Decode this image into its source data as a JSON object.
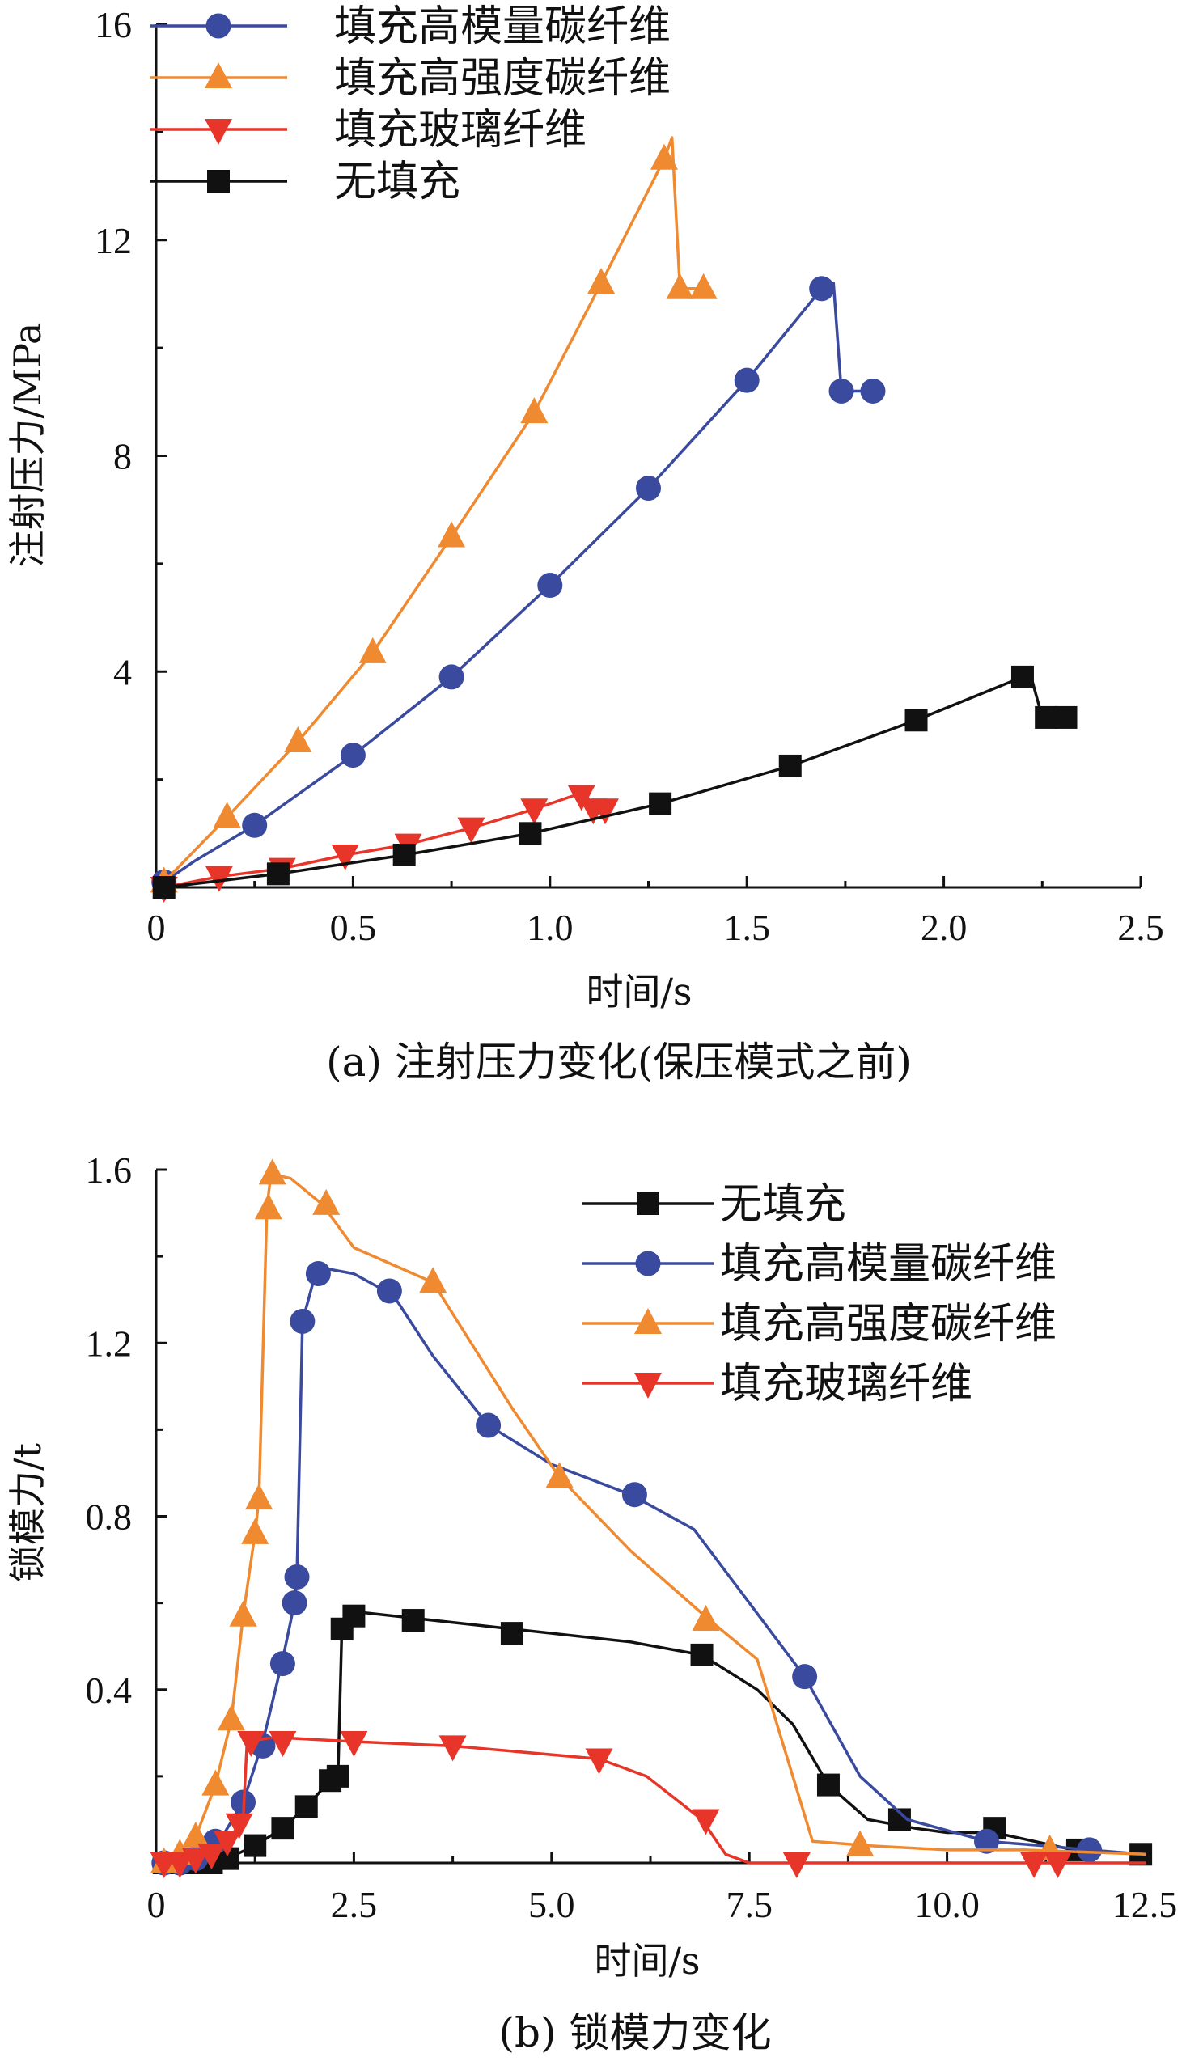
{
  "colors": {
    "blue": "#3a4a9e",
    "orange": "#f08a30",
    "red": "#e8352a",
    "black": "#111111"
  },
  "chart_data": [
    {
      "id": "a",
      "type": "line",
      "caption": "(a) 注射压力变化(保压模式之前)",
      "xlabel": "时间/s",
      "ylabel": "注射压力/MPa",
      "xlim": [
        0,
        2.5
      ],
      "ylim": [
        0,
        16
      ],
      "xticks": [
        0,
        0.5,
        1.0,
        1.5,
        2.0,
        2.5
      ],
      "xtick_labels": [
        "0",
        "0.5",
        "1.0",
        "1.5",
        "2.0",
        "2.5"
      ],
      "yticks": [
        4,
        8,
        12,
        16
      ],
      "ytick_labels": [
        "4",
        "8",
        "12",
        "16"
      ],
      "legend_position": "top-left",
      "series": [
        {
          "name": "填充高模量碳纤维",
          "color": "blue",
          "marker": "circle",
          "line": [
            [
              0.02,
              0.1
            ],
            [
              0.1,
              0.5
            ],
            [
              0.25,
              1.15
            ],
            [
              0.5,
              2.45
            ],
            [
              0.75,
              3.9
            ],
            [
              1.0,
              5.6
            ],
            [
              1.25,
              7.4
            ],
            [
              1.5,
              9.4
            ],
            [
              1.69,
              11.1
            ],
            [
              1.72,
              11.2
            ],
            [
              1.74,
              9.2
            ],
            [
              1.82,
              9.2
            ]
          ],
          "markers": [
            [
              0.02,
              0.1
            ],
            [
              0.25,
              1.15
            ],
            [
              0.5,
              2.45
            ],
            [
              0.75,
              3.9
            ],
            [
              1.0,
              5.6
            ],
            [
              1.25,
              7.4
            ],
            [
              1.5,
              9.4
            ],
            [
              1.69,
              11.1
            ],
            [
              1.74,
              9.2
            ],
            [
              1.82,
              9.2
            ]
          ]
        },
        {
          "name": "填充高强度碳纤维",
          "color": "orange",
          "marker": "triangle-up",
          "line": [
            [
              0.02,
              0.1
            ],
            [
              0.18,
              1.3
            ],
            [
              0.36,
              2.7
            ],
            [
              0.55,
              4.35
            ],
            [
              0.75,
              6.5
            ],
            [
              0.96,
              8.8
            ],
            [
              1.13,
              11.2
            ],
            [
              1.29,
              13.5
            ],
            [
              1.31,
              13.9
            ],
            [
              1.33,
              11.1
            ],
            [
              1.39,
              11.1
            ]
          ],
          "markers": [
            [
              0.02,
              0.1
            ],
            [
              0.18,
              1.3
            ],
            [
              0.36,
              2.7
            ],
            [
              0.55,
              4.35
            ],
            [
              0.75,
              6.5
            ],
            [
              0.96,
              8.8
            ],
            [
              1.13,
              11.2
            ],
            [
              1.29,
              13.5
            ],
            [
              1.33,
              11.1
            ],
            [
              1.39,
              11.1
            ]
          ]
        },
        {
          "name": "填充玻璃纤维",
          "color": "red",
          "marker": "triangle-down",
          "line": [
            [
              0.02,
              0.0
            ],
            [
              0.16,
              0.2
            ],
            [
              0.32,
              0.35
            ],
            [
              0.48,
              0.6
            ],
            [
              0.64,
              0.8
            ],
            [
              0.8,
              1.1
            ],
            [
              0.96,
              1.45
            ],
            [
              1.06,
              1.7
            ],
            [
              1.09,
              1.75
            ],
            [
              1.11,
              1.45
            ],
            [
              1.14,
              1.45
            ]
          ],
          "markers": [
            [
              0.02,
              0.0
            ],
            [
              0.16,
              0.2
            ],
            [
              0.32,
              0.35
            ],
            [
              0.48,
              0.6
            ],
            [
              0.64,
              0.8
            ],
            [
              0.8,
              1.1
            ],
            [
              0.96,
              1.45
            ],
            [
              1.08,
              1.7
            ],
            [
              1.11,
              1.45
            ],
            [
              1.14,
              1.45
            ]
          ]
        },
        {
          "name": "无填充",
          "color": "black",
          "marker": "square",
          "line": [
            [
              0.02,
              0.0
            ],
            [
              0.31,
              0.25
            ],
            [
              0.63,
              0.6
            ],
            [
              0.95,
              1.0
            ],
            [
              1.28,
              1.55
            ],
            [
              1.61,
              2.25
            ],
            [
              1.93,
              3.1
            ],
            [
              2.2,
              3.9
            ],
            [
              2.22,
              3.95
            ],
            [
              2.25,
              3.15
            ],
            [
              2.31,
              3.15
            ]
          ],
          "markers": [
            [
              0.02,
              0.0
            ],
            [
              0.31,
              0.25
            ],
            [
              0.63,
              0.6
            ],
            [
              0.95,
              1.0
            ],
            [
              1.28,
              1.55
            ],
            [
              1.61,
              2.25
            ],
            [
              1.93,
              3.1
            ],
            [
              2.2,
              3.9
            ],
            [
              2.26,
              3.15
            ],
            [
              2.31,
              3.15
            ]
          ]
        }
      ]
    },
    {
      "id": "b",
      "type": "line",
      "caption": "(b) 锁模力变化",
      "xlabel": "时间/s",
      "ylabel": "锁模力/t",
      "xlim": [
        0,
        12.5
      ],
      "ylim": [
        0,
        1.6
      ],
      "xticks": [
        0,
        2.5,
        5.0,
        7.5,
        10.0,
        12.5
      ],
      "xtick_labels": [
        "0",
        "2.5",
        "5.0",
        "7.5",
        "10.0",
        "12.5"
      ],
      "yticks": [
        0.4,
        0.8,
        1.2,
        1.6
      ],
      "ytick_labels": [
        "0.4",
        "0.8",
        "1.2",
        "1.6"
      ],
      "legend_position": "top-right",
      "series": [
        {
          "name": "无填充",
          "color": "black",
          "marker": "square",
          "line": [
            [
              0.1,
              0
            ],
            [
              0.5,
              0
            ],
            [
              0.9,
              0.01
            ],
            [
              1.25,
              0.04
            ],
            [
              1.6,
              0.08
            ],
            [
              1.9,
              0.13
            ],
            [
              2.2,
              0.19
            ],
            [
              2.3,
              0.2
            ],
            [
              2.35,
              0.55
            ],
            [
              2.5,
              0.58
            ],
            [
              4.0,
              0.55
            ],
            [
              6.0,
              0.51
            ],
            [
              6.9,
              0.48
            ],
            [
              7.6,
              0.4
            ],
            [
              8.05,
              0.32
            ],
            [
              8.5,
              0.18
            ],
            [
              9.0,
              0.1
            ],
            [
              9.6,
              0.08
            ],
            [
              10.0,
              0.07
            ],
            [
              10.6,
              0.07
            ],
            [
              11.1,
              0.05
            ],
            [
              11.6,
              0.03
            ],
            [
              12.5,
              0.02
            ]
          ],
          "markers": [
            [
              0.1,
              0
            ],
            [
              0.3,
              0
            ],
            [
              0.5,
              0
            ],
            [
              0.7,
              0
            ],
            [
              0.9,
              0.01
            ],
            [
              1.25,
              0.04
            ],
            [
              1.6,
              0.08
            ],
            [
              1.9,
              0.13
            ],
            [
              2.2,
              0.19
            ],
            [
              2.3,
              0.2
            ],
            [
              2.35,
              0.54
            ],
            [
              2.5,
              0.57
            ],
            [
              3.25,
              0.56
            ],
            [
              4.5,
              0.53
            ],
            [
              6.9,
              0.48
            ],
            [
              8.5,
              0.18
            ],
            [
              9.4,
              0.1
            ],
            [
              10.6,
              0.08
            ],
            [
              11.65,
              0.03
            ],
            [
              12.45,
              0.02
            ]
          ]
        },
        {
          "name": "填充高模量碳纤维",
          "color": "blue",
          "marker": "circle",
          "line": [
            [
              0.1,
              0
            ],
            [
              0.6,
              0.02
            ],
            [
              0.8,
              0.05
            ],
            [
              1.1,
              0.14
            ],
            [
              1.35,
              0.28
            ],
            [
              1.6,
              0.47
            ],
            [
              1.75,
              0.6
            ],
            [
              1.78,
              0.66
            ],
            [
              1.85,
              1.25
            ],
            [
              2.0,
              1.35
            ],
            [
              2.2,
              1.37
            ],
            [
              2.5,
              1.36
            ],
            [
              3.0,
              1.31
            ],
            [
              3.5,
              1.17
            ],
            [
              4.2,
              1.01
            ],
            [
              5.0,
              0.92
            ],
            [
              6.0,
              0.85
            ],
            [
              6.8,
              0.77
            ],
            [
              7.5,
              0.6
            ],
            [
              8.2,
              0.43
            ],
            [
              8.9,
              0.2
            ],
            [
              9.5,
              0.1
            ],
            [
              10.5,
              0.05
            ],
            [
              11.2,
              0.04
            ],
            [
              11.8,
              0.03
            ],
            [
              12.5,
              0.02
            ]
          ],
          "markers": [
            [
              0.1,
              0
            ],
            [
              0.3,
              0
            ],
            [
              0.5,
              0.01
            ],
            [
              0.75,
              0.05
            ],
            [
              1.1,
              0.14
            ],
            [
              1.35,
              0.27
            ],
            [
              1.6,
              0.46
            ],
            [
              1.75,
              0.6
            ],
            [
              1.78,
              0.66
            ],
            [
              1.85,
              1.25
            ],
            [
              2.05,
              1.36
            ],
            [
              2.95,
              1.32
            ],
            [
              4.2,
              1.01
            ],
            [
              6.05,
              0.85
            ],
            [
              8.2,
              0.43
            ],
            [
              10.5,
              0.05
            ],
            [
              11.8,
              0.03
            ]
          ]
        },
        {
          "name": "填充高强度碳纤维",
          "color": "orange",
          "marker": "triangle-up",
          "line": [
            [
              0.1,
              0
            ],
            [
              0.5,
              0.06
            ],
            [
              0.75,
              0.18
            ],
            [
              0.95,
              0.33
            ],
            [
              1.1,
              0.57
            ],
            [
              1.25,
              0.76
            ],
            [
              1.3,
              0.84
            ],
            [
              1.4,
              1.51
            ],
            [
              1.45,
              1.59
            ],
            [
              1.7,
              1.58
            ],
            [
              2.1,
              1.52
            ],
            [
              2.5,
              1.42
            ],
            [
              3.5,
              1.34
            ],
            [
              4.5,
              1.05
            ],
            [
              5.1,
              0.89
            ],
            [
              6.0,
              0.72
            ],
            [
              7.0,
              0.56
            ],
            [
              7.6,
              0.47
            ],
            [
              8.3,
              0.05
            ],
            [
              9.0,
              0.04
            ],
            [
              10.0,
              0.03
            ],
            [
              11.0,
              0.03
            ],
            [
              12.5,
              0.02
            ]
          ],
          "markers": [
            [
              0.1,
              0
            ],
            [
              0.3,
              0.02
            ],
            [
              0.5,
              0.06
            ],
            [
              0.75,
              0.18
            ],
            [
              0.95,
              0.33
            ],
            [
              1.1,
              0.57
            ],
            [
              1.25,
              0.76
            ],
            [
              1.3,
              0.84
            ],
            [
              1.42,
              1.51
            ],
            [
              1.47,
              1.59
            ],
            [
              2.15,
              1.52
            ],
            [
              3.5,
              1.34
            ],
            [
              5.1,
              0.89
            ],
            [
              6.95,
              0.56
            ],
            [
              8.9,
              0.04
            ],
            [
              11.3,
              0.03
            ]
          ]
        },
        {
          "name": "填充玻璃纤维",
          "color": "red",
          "marker": "triangle-down",
          "line": [
            [
              0.1,
              0
            ],
            [
              0.6,
              0.02
            ],
            [
              0.9,
              0.05
            ],
            [
              1.1,
              0.1
            ],
            [
              1.15,
              0.28
            ],
            [
              1.5,
              0.29
            ],
            [
              2.5,
              0.28
            ],
            [
              3.75,
              0.27
            ],
            [
              5.6,
              0.24
            ],
            [
              6.2,
              0.2
            ],
            [
              6.9,
              0.1
            ],
            [
              7.2,
              0.02
            ],
            [
              7.5,
              0.0
            ],
            [
              8.1,
              0.0
            ],
            [
              11.0,
              0.0
            ],
            [
              12.5,
              0.0
            ]
          ],
          "markers": [
            [
              0.1,
              0
            ],
            [
              0.3,
              0
            ],
            [
              0.5,
              0.01
            ],
            [
              0.7,
              0.02
            ],
            [
              0.9,
              0.05
            ],
            [
              1.05,
              0.09
            ],
            [
              1.2,
              0.28
            ],
            [
              1.6,
              0.28
            ],
            [
              2.5,
              0.28
            ],
            [
              3.75,
              0.27
            ],
            [
              5.6,
              0.24
            ],
            [
              6.95,
              0.1
            ],
            [
              8.1,
              0.0
            ],
            [
              11.1,
              0.0
            ],
            [
              11.4,
              0.0
            ]
          ]
        }
      ]
    }
  ]
}
